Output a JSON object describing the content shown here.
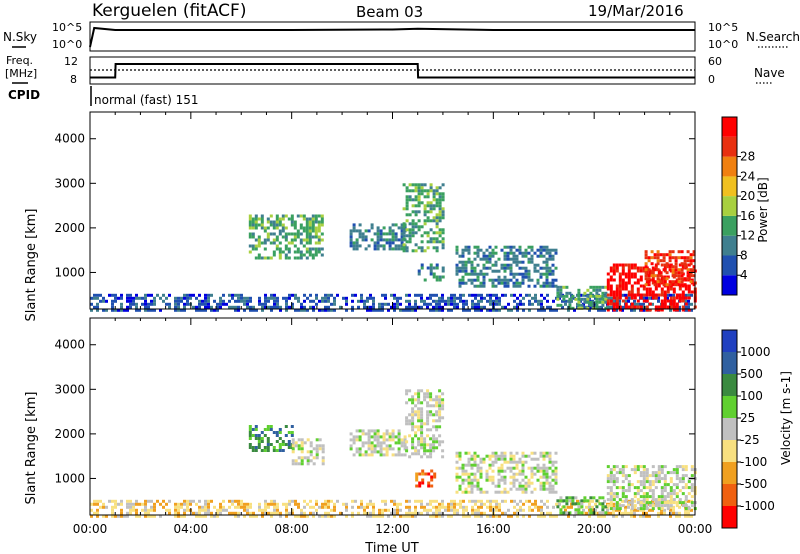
{
  "header": {
    "station": "Kerguelen (fitACF)",
    "beam": "Beam 03",
    "date": "19/Mar/2016",
    "mode": "normal (fast) 151"
  },
  "left_labels": {
    "nsky": "N.Sky",
    "freq1": "Freq.",
    "freq2": "[MHz]",
    "cpid": "CPID"
  },
  "right_labels": {
    "nsearch": "N.Search",
    "nave": "Nave"
  },
  "noise_axis": {
    "left_ticks": [
      "10^5",
      "10^0"
    ],
    "right_ticks": [
      "10^5",
      "10^0"
    ]
  },
  "freq_axis": {
    "left_ticks": [
      "12",
      "8"
    ],
    "right_ticks": [
      "60",
      "0"
    ]
  },
  "chart_data": [
    {
      "type": "line",
      "panel": "noise",
      "series": [
        {
          "name": "N.Sky",
          "x": [
            "00:00",
            "00:10",
            "01:00",
            "04:00",
            "08:00",
            "12:00",
            "13:00",
            "16:00",
            "20:00",
            "24:00"
          ],
          "y": [
            1,
            100000,
            30000,
            30000,
            30000,
            40000,
            60000,
            30000,
            30000,
            30000
          ]
        },
        {
          "name": "N.Search",
          "x": [
            "00:00",
            "24:00"
          ],
          "y": [
            30000,
            30000
          ]
        }
      ]
    },
    {
      "type": "line",
      "panel": "frequency",
      "series": [
        {
          "name": "Freq.",
          "x": [
            "00:00",
            "01:00",
            "01:01",
            "13:00",
            "13:01",
            "24:00"
          ],
          "y": [
            9,
            9,
            12,
            12,
            9,
            9
          ]
        },
        {
          "name": "Nave",
          "x": [
            "00:00",
            "24:00"
          ],
          "y": [
            40,
            40
          ]
        }
      ]
    },
    {
      "type": "heatmap",
      "panel": "power",
      "xlabel": "",
      "ylabel": "Slant Range [km]",
      "xlim": [
        "00:00",
        "24:00"
      ],
      "ylim": [
        180,
        4600
      ],
      "yticks": [
        1000,
        2000,
        3000,
        4000
      ],
      "colorbar": {
        "label": "Power [dB]",
        "ticks": [
          4,
          8,
          12,
          16,
          20,
          24,
          28
        ],
        "colors": [
          "#0000e0",
          "#2050b0",
          "#3f7f8f",
          "#3aa060",
          "#a8d040",
          "#f0c020",
          "#f08010",
          "#e83010",
          "#ff0000"
        ]
      },
      "regions": [
        {
          "t0": 0.0,
          "t1": 23.9,
          "r0": 180,
          "r1": 520,
          "level": 1
        },
        {
          "t0": 6.3,
          "t1": 9.2,
          "r0": 1300,
          "r1": 2300,
          "level": 3
        },
        {
          "t0": 10.3,
          "t1": 12.5,
          "r0": 1500,
          "r1": 2100,
          "level": 2
        },
        {
          "t0": 12.4,
          "t1": 14.0,
          "r0": 1500,
          "r1": 3000,
          "level": 3
        },
        {
          "t0": 13.0,
          "t1": 14.0,
          "r0": 800,
          "r1": 1200,
          "level": 2
        },
        {
          "t0": 14.5,
          "t1": 18.5,
          "r0": 700,
          "r1": 1600,
          "level": 2
        },
        {
          "t0": 18.5,
          "t1": 20.5,
          "r0": 200,
          "r1": 700,
          "level": 3
        },
        {
          "t0": 20.5,
          "t1": 24.0,
          "r0": 180,
          "r1": 1200,
          "level": 8
        },
        {
          "t0": 22.0,
          "t1": 24.0,
          "r0": 700,
          "r1": 1500,
          "level": 7
        }
      ]
    },
    {
      "type": "heatmap",
      "panel": "velocity",
      "xlabel": "Time UT",
      "ylabel": "Slant Range [km]",
      "xlim": [
        "00:00",
        "24:00"
      ],
      "ylim": [
        180,
        4600
      ],
      "xticks": [
        "00:00",
        "04:00",
        "08:00",
        "12:00",
        "16:00",
        "20:00",
        "00:00"
      ],
      "yticks": [
        1000,
        2000,
        3000,
        4000
      ],
      "colorbar": {
        "label": "Velocity [m s-1]",
        "ticks": [
          "1000",
          "500",
          "100",
          "25",
          "-25",
          "-100",
          "-500",
          "-1000"
        ],
        "colors": [
          "#2040c0",
          "#3060a0",
          "#3a8a40",
          "#60d030",
          "#c0c0c0",
          "#f8e080",
          "#f0a020",
          "#f06010",
          "#ff0000"
        ]
      },
      "regions": [
        {
          "t0": 0.0,
          "t1": 23.9,
          "r0": 180,
          "r1": 520,
          "level": 5
        },
        {
          "t0": 6.3,
          "t1": 8.0,
          "r0": 1600,
          "r1": 2200,
          "level": 2
        },
        {
          "t0": 8.0,
          "t1": 9.2,
          "r0": 1300,
          "r1": 1900,
          "level": 4
        },
        {
          "t0": 10.3,
          "t1": 12.5,
          "r0": 1500,
          "r1": 2100,
          "level": 4
        },
        {
          "t0": 12.5,
          "t1": 14.0,
          "r0": 1500,
          "r1": 3000,
          "level": 4
        },
        {
          "t0": 12.9,
          "t1": 13.7,
          "r0": 800,
          "r1": 1200,
          "level": 7
        },
        {
          "t0": 14.5,
          "t1": 18.5,
          "r0": 700,
          "r1": 1600,
          "level": 4
        },
        {
          "t0": 18.5,
          "t1": 20.5,
          "r0": 250,
          "r1": 600,
          "level": 3
        },
        {
          "t0": 20.5,
          "t1": 24.0,
          "r0": 300,
          "r1": 1300,
          "level": 4
        }
      ]
    }
  ]
}
